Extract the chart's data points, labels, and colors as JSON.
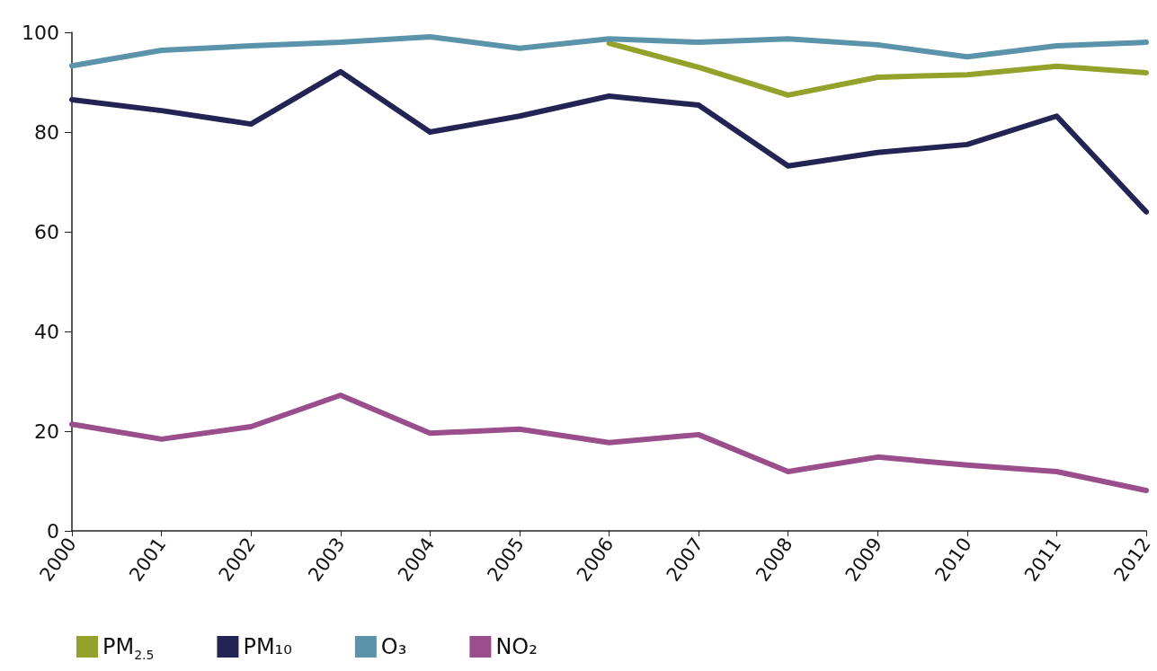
{
  "chart_data": {
    "type": "line",
    "categories": [
      "2000",
      "2001",
      "2002",
      "2003",
      "2004",
      "2005",
      "2006",
      "2007",
      "2008",
      "2009",
      "2010",
      "2011",
      "2012"
    ],
    "series": [
      {
        "name": "PM$_{2.5}$",
        "color": "#94a12b",
        "values": [
          null,
          null,
          null,
          null,
          null,
          null,
          97.8,
          93.0,
          87.4,
          91.0,
          91.5,
          93.2,
          91.9
        ]
      },
      {
        "name": "PM₁₀",
        "color": "#232453",
        "values": [
          86.5,
          84.3,
          81.6,
          92.1,
          80.0,
          83.2,
          87.2,
          85.4,
          73.2,
          75.9,
          77.5,
          83.2,
          64.0
        ]
      },
      {
        "name": "O₃",
        "color": "#5b93ab",
        "values": [
          93.3,
          96.4,
          97.3,
          98.0,
          99.1,
          96.8,
          98.7,
          98.0,
          98.7,
          97.5,
          95.1,
          97.3,
          98.0
        ]
      },
      {
        "name": "NO₂",
        "color": "#9a4e8c",
        "values": [
          21.4,
          18.4,
          20.9,
          27.2,
          19.6,
          20.4,
          17.7,
          19.3,
          11.9,
          14.8,
          13.2,
          11.9,
          8.1
        ]
      }
    ],
    "ylim": [
      0,
      100
    ],
    "yticks": [
      0,
      20,
      40,
      60,
      80,
      100
    ],
    "grid": false,
    "legend": "bottom",
    "marker": "none",
    "line_style": "solid"
  }
}
